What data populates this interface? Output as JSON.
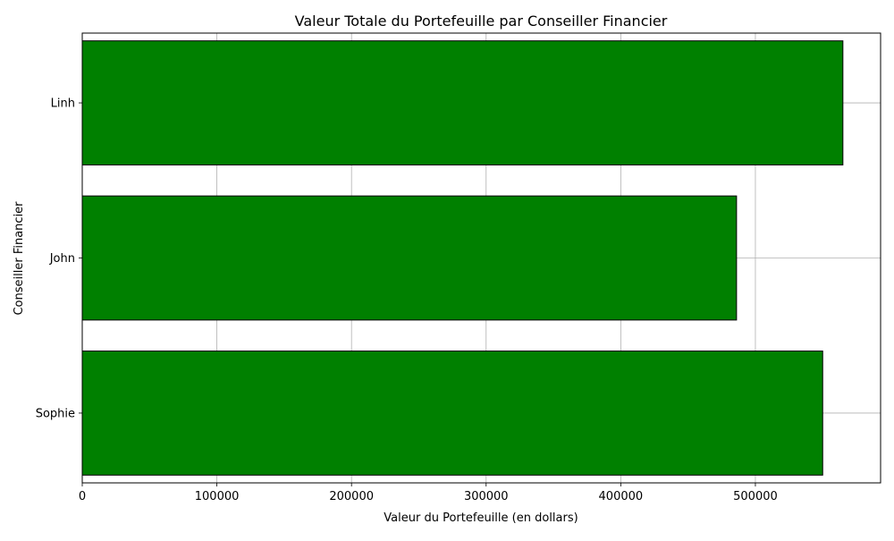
{
  "chart_data": {
    "type": "bar",
    "orientation": "horizontal",
    "title": "Valeur Totale du Portefeuille par Conseiller Financier",
    "xlabel": "Valeur du Portefeuille (en dollars)",
    "ylabel": "Conseiller Financier",
    "categories": [
      "Sophie",
      "John",
      "Linh"
    ],
    "values": [
      550000,
      486000,
      565000
    ],
    "xlim": [
      0,
      593000
    ],
    "xticks": [
      0,
      100000,
      200000,
      300000,
      400000,
      500000
    ],
    "xtick_labels": [
      "0",
      "100000",
      "200000",
      "300000",
      "400000",
      "500000"
    ],
    "grid": true,
    "bar_color": "#008000",
    "bar_edge_color": "#000000",
    "grid_color": "#b0b0b0"
  }
}
